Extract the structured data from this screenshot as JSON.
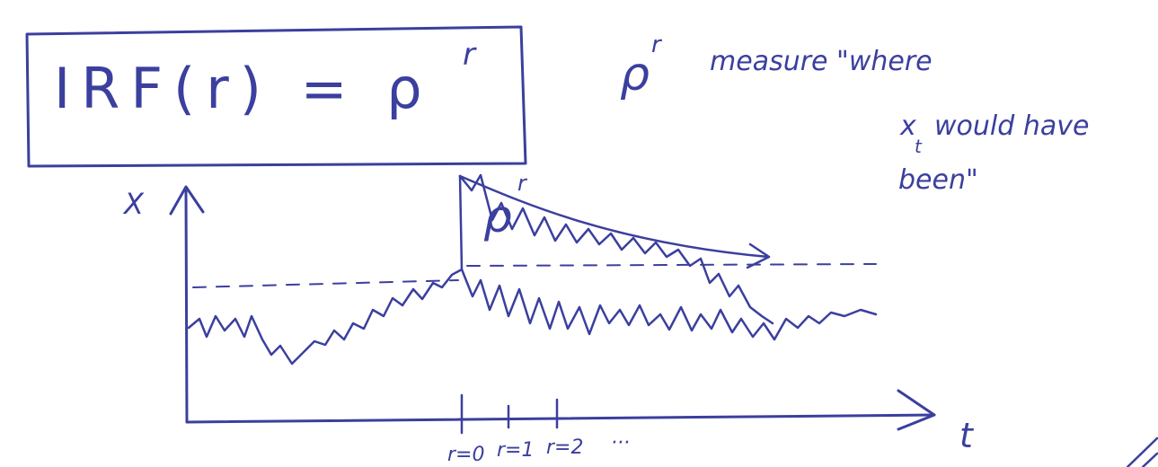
{
  "ink_color": "#3b3f9e",
  "formula": {
    "text": "IRF(r) = ρ",
    "exponent": "r"
  },
  "note": {
    "symbol": "ρ",
    "symbol_exponent": "r",
    "line1": "measure \"where",
    "line2_var": "x",
    "line2_sub": "t",
    "line2_rest": "would have",
    "line3": "been\""
  },
  "diagram": {
    "y_axis_label": "X",
    "x_axis_label": "t",
    "decay_label": "ρ",
    "decay_label_exponent": "r",
    "ticks": [
      "r=0",
      "r=1",
      "r=2"
    ],
    "ticks_ellipsis": "···"
  }
}
